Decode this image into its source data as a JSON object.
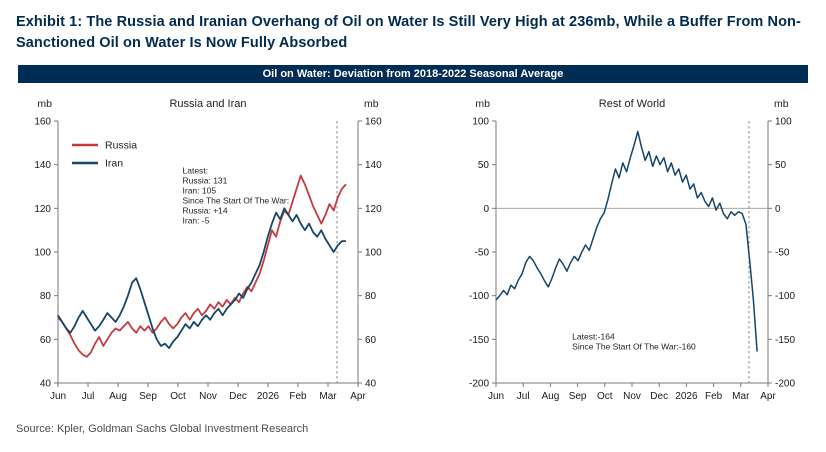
{
  "title": "Exhibit 1: The Russia and Iranian Overhang of Oil on Water Is Still Very High at 236mb, While a Buffer From Non-Sanctioned Oil on Water Is Now Fully Absorbed",
  "header": {
    "label": "Oil on Water: Deviation from 2018-2022 Seasonal Average"
  },
  "source": "Source: Kpler, Goldman Sachs Global Investment Research",
  "colors": {
    "title_text": "#012b4e",
    "header_bg": "#002d55",
    "russia_red": "#c63a3f",
    "navy_line": "#14456a",
    "axis": "#7a7a7a",
    "dashed_line": "#8a8a8a",
    "zero_line": "#9a9a9a",
    "tick_text": "#1a1a1a"
  },
  "chart_data": [
    {
      "type": "line",
      "title": "Russia and Iran",
      "unit": "mb",
      "ylim": [
        40,
        160
      ],
      "yticks": [
        40,
        60,
        80,
        100,
        120,
        140,
        160
      ],
      "x_range": [
        0,
        10
      ],
      "xticklabels": [
        "Jun",
        "Jul",
        "Aug",
        "Sep",
        "Oct",
        "Nov",
        "Dec",
        "2026",
        "Feb",
        "Mar",
        "Apr"
      ],
      "dashed_x": 9.3,
      "grid": false,
      "legend_position": "top-left-inside",
      "series": [
        {
          "name": "Russia",
          "color": "#c63a3f",
          "x_end": 9.6,
          "values": [
            70,
            68,
            65,
            62,
            58,
            55,
            53,
            52,
            54,
            58,
            61,
            57,
            60,
            63,
            65,
            64,
            66,
            68,
            65,
            63,
            66,
            64,
            66,
            63,
            65,
            68,
            70,
            67,
            65,
            67,
            70,
            72,
            69,
            72,
            74,
            71,
            73,
            76,
            74,
            77,
            75,
            78,
            76,
            79,
            77,
            81,
            84,
            82,
            86,
            90,
            96,
            103,
            110,
            107,
            114,
            119,
            117,
            123,
            129,
            135,
            131,
            126,
            121,
            117,
            113,
            117,
            122,
            119,
            125,
            129,
            131
          ]
        },
        {
          "name": "Iran",
          "color": "#14456a",
          "x_end": 9.6,
          "values": [
            71,
            68,
            65,
            63,
            66,
            70,
            73,
            70,
            67,
            64,
            66,
            69,
            72,
            70,
            68,
            71,
            75,
            80,
            86,
            88,
            83,
            77,
            71,
            65,
            60,
            57,
            58,
            56,
            59,
            61,
            64,
            67,
            65,
            68,
            66,
            69,
            71,
            69,
            72,
            74,
            71,
            74,
            76,
            78,
            81,
            79,
            83,
            86,
            90,
            94,
            100,
            107,
            113,
            118,
            115,
            120,
            117,
            114,
            117,
            113,
            110,
            113,
            109,
            107,
            110,
            106,
            103,
            100,
            103,
            105,
            105
          ]
        }
      ],
      "annotation": {
        "text": "Latest:\nRussia: 131\nIran: 105\nSince The Start Of The War:\nRussia: +14\nIran: -5",
        "x": 4.15,
        "y": 136
      }
    },
    {
      "type": "line",
      "title": "Rest of World",
      "unit": "mb",
      "ylim": [
        -200,
        100
      ],
      "yticks": [
        -200,
        -150,
        -100,
        -50,
        0,
        50,
        100
      ],
      "x_range": [
        0,
        10
      ],
      "xticklabels": [
        "Jun",
        "Jul",
        "Aug",
        "Sep",
        "Oct",
        "Nov",
        "Dec",
        "2026",
        "Feb",
        "Mar",
        "Apr"
      ],
      "dashed_x": 9.3,
      "zero_line": true,
      "grid": false,
      "series": [
        {
          "name": "Rest of World",
          "color": "#14456a",
          "x_end": 9.6,
          "values": [
            -105,
            -100,
            -94,
            -99,
            -88,
            -92,
            -82,
            -75,
            -62,
            -55,
            -60,
            -68,
            -75,
            -83,
            -90,
            -80,
            -68,
            -58,
            -64,
            -72,
            -62,
            -55,
            -60,
            -50,
            -42,
            -48,
            -35,
            -22,
            -12,
            -5,
            10,
            28,
            45,
            35,
            52,
            42,
            58,
            72,
            88,
            70,
            55,
            65,
            48,
            60,
            50,
            58,
            42,
            52,
            38,
            45,
            30,
            38,
            22,
            28,
            12,
            18,
            8,
            2,
            12,
            -2,
            6,
            -6,
            -12,
            -4,
            -8,
            -4,
            -6,
            -18,
            -60,
            -105,
            -164
          ]
        }
      ],
      "annotation": {
        "text": "Latest:-164\nSince The Start Of The War:-160",
        "x": 2.8,
        "y": -150
      }
    }
  ]
}
